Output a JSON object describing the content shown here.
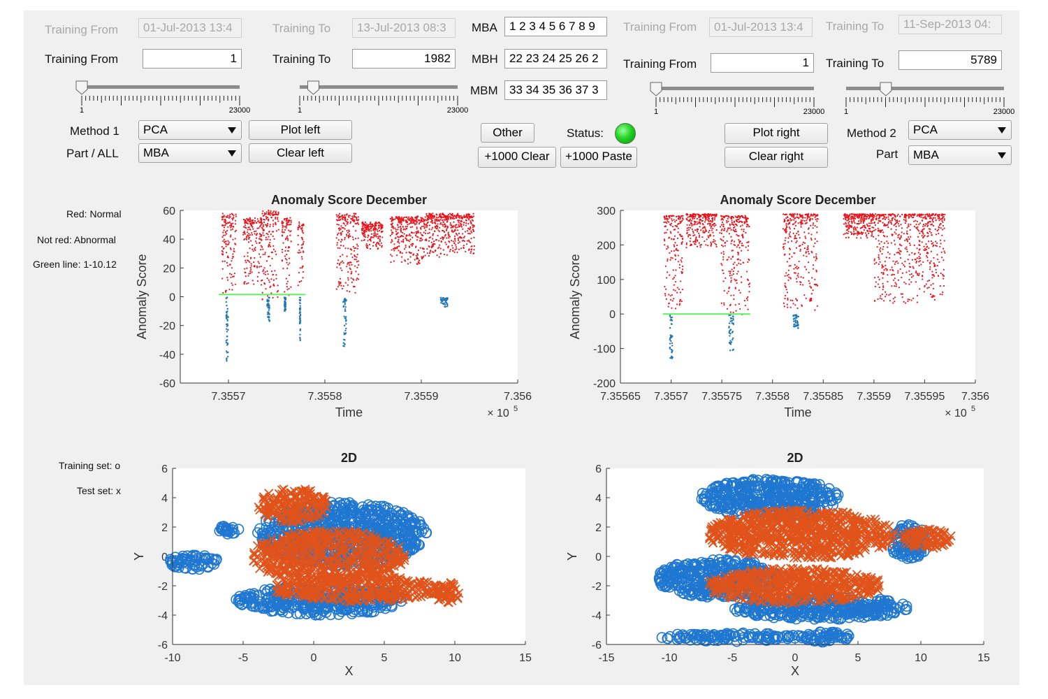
{
  "left_panel": {
    "training_from_date_label": "Training From",
    "training_from_date_value": "01-Jul-2013 13:4",
    "training_to_date_label": "Training To",
    "training_to_date_value": "13-Jul-2013 08:3",
    "training_from_label": "Training From",
    "training_from_value": "1",
    "training_to_label": "Training To",
    "training_to_value": "1982",
    "slider_from": {
      "min": "1",
      "max": "23000",
      "value": 1
    },
    "slider_to": {
      "min": "1",
      "max": "23000",
      "value": 1982
    },
    "method_label": "Method 1",
    "method_value": "PCA",
    "part_label": "Part / ALL",
    "part_value": "MBA",
    "plot_button": "Plot left",
    "clear_button": "Clear left"
  },
  "center_panel": {
    "mba_label": "MBA",
    "mba_value": "1 2 3 4 5 6 7 8 9",
    "mbh_label": "MBH",
    "mbh_value": "22 23 24 25 26 2",
    "mbm_label": "MBM",
    "mbm_value": "33 34 35 36 37 3",
    "other_button": "Other",
    "status_label": "Status:",
    "status_color": "#22d422",
    "clear_1000_button": "+1000 Clear",
    "paste_1000_button": "+1000 Paste"
  },
  "right_panel": {
    "training_from_date_label": "Training From",
    "training_from_date_value": "01-Jul-2013 13:4",
    "training_to_date_label": "Training To",
    "training_to_date_value": "11-Sep-2013 04:",
    "training_from_label": "Training From",
    "training_from_value": "1",
    "training_to_label": "Training To",
    "training_to_value": "5789",
    "slider_from": {
      "min": "1",
      "max": "23000",
      "value": 1
    },
    "slider_to": {
      "min": "1",
      "max": "23000",
      "value": 5789
    },
    "method_label": "Method 2",
    "method_value": "PCA",
    "part_label": "Part",
    "part_value": "MBA",
    "plot_button": "Plot right",
    "clear_button": "Clear right"
  },
  "legend_notes": {
    "red": "Red: Normal",
    "not_red": "Not red: Abnormal",
    "green": "Green line: 1-10.12",
    "training": "Training set: o",
    "test": "Test set: x"
  },
  "colors": {
    "normal": "#e8141c",
    "abnormal": "#1f77b4",
    "threshold": "#5cf05c",
    "train": "#1f77d0",
    "test": "#e0531a"
  },
  "chart_data": [
    {
      "type": "scatter",
      "title": "Anomaly Score December",
      "xlabel": "Time",
      "ylabel": "Anomaly Score",
      "x_exponent_label": "× 10",
      "x_exponent": "5",
      "xlim": [
        735565,
        735600
      ],
      "ylim": [
        -60,
        60
      ],
      "xticks": [
        735570,
        735580,
        735590,
        735600
      ],
      "xtick_labels": [
        "7.3557",
        "7.3558",
        "7.3559",
        "7.356"
      ],
      "yticks": [
        60,
        40,
        20,
        0,
        -20,
        -40,
        -60
      ],
      "threshold": {
        "y": 1.5,
        "x_range": [
          735569,
          735578
        ]
      },
      "clusters": [
        {
          "x": [
            735569.3,
            735570.8
          ],
          "y_top": 58,
          "y_bottom": 3,
          "abn_bottom": -44
        },
        {
          "x": [
            735571.5,
            735573.5
          ],
          "y_top": 55,
          "y_bottom": 10,
          "abn_bottom": null
        },
        {
          "x": [
            735573.5,
            735575.2
          ],
          "y_top": 60,
          "y_bottom": 0,
          "abn_bottom": -15
        },
        {
          "x": [
            735575.5,
            735576.5
          ],
          "y_top": 55,
          "y_bottom": 2,
          "abn_bottom": -8
        },
        {
          "x": [
            735577.2,
            735577.8
          ],
          "y_top": 52,
          "y_bottom": 5,
          "abn_bottom": -32
        },
        {
          "x": [
            735581.2,
            735583.5
          ],
          "y_top": 58,
          "y_bottom": 5,
          "abn_bottom": -33
        },
        {
          "x": [
            735583.8,
            735586.0
          ],
          "y_top": 52,
          "y_bottom": 35,
          "abn_bottom": null
        },
        {
          "x": [
            735586.8,
            735590.5
          ],
          "y_top": 56,
          "y_bottom": 25,
          "abn_bottom": null
        },
        {
          "x": [
            735590.5,
            735595.5
          ],
          "y_top": 58,
          "y_bottom": 30,
          "abn_bottom": -5
        }
      ]
    },
    {
      "type": "scatter",
      "title": "Anomaly Score December",
      "xlabel": "Time",
      "ylabel": "Anomaly Score",
      "x_exponent_label": "× 10",
      "x_exponent": "5",
      "xlim": [
        735565,
        735600
      ],
      "ylim": [
        -200,
        300
      ],
      "xticks": [
        735565,
        735570,
        735575,
        735580,
        735585,
        735590,
        735595,
        735600
      ],
      "xtick_labels": [
        "7.35565",
        "7.3557",
        "7.35575",
        "7.3558",
        "7.35585",
        "7.3559",
        "7.35595",
        "7.356"
      ],
      "yticks": [
        300,
        200,
        100,
        0,
        -100,
        -200
      ],
      "threshold": {
        "y": 0,
        "x_range": [
          735569.2,
          735577.8
        ]
      },
      "clusters": [
        {
          "x": [
            735569.3,
            735571.2
          ],
          "y_top": 285,
          "y_bottom": 5,
          "abn_bottom": -140
        },
        {
          "x": [
            735571.5,
            735574.5
          ],
          "y_top": 290,
          "y_bottom": 190,
          "abn_bottom": null
        },
        {
          "x": [
            735574.8,
            735577.8
          ],
          "y_top": 285,
          "y_bottom": 0,
          "abn_bottom": -110
        },
        {
          "x": [
            735581.0,
            735584.5
          ],
          "y_top": 290,
          "y_bottom": 10,
          "abn_bottom": -40
        },
        {
          "x": [
            735587.0,
            735590.0
          ],
          "y_top": 290,
          "y_bottom": 220,
          "abn_bottom": null
        },
        {
          "x": [
            735590.0,
            735597.0
          ],
          "y_top": 290,
          "y_bottom": 30,
          "abn_bottom": null
        }
      ]
    },
    {
      "type": "scatter",
      "title": "2D",
      "xlabel": "X",
      "ylabel": "Y",
      "xlim": [
        -10,
        15
      ],
      "ylim": [
        -6,
        6
      ],
      "xticks": [
        -10,
        -5,
        0,
        5,
        10,
        15
      ],
      "yticks": [
        6,
        4,
        2,
        0,
        -2,
        -4,
        -6
      ],
      "series": [
        {
          "name": "Training set",
          "marker": "o",
          "regions": [
            {
              "cx": -8.5,
              "cy": -0.4,
              "rx": 1.8,
              "ry": 0.5
            },
            {
              "cx": 2.0,
              "cy": 1.5,
              "rx": 6.0,
              "ry": 2.2
            },
            {
              "cx": 0.5,
              "cy": -3.0,
              "rx": 6.0,
              "ry": 1.0
            },
            {
              "cx": -6.0,
              "cy": 1.8,
              "rx": 0.8,
              "ry": 0.3
            }
          ]
        },
        {
          "name": "Test set",
          "marker": "x",
          "regions": [
            {
              "cx": -1.5,
              "cy": 3.5,
              "rx": 2.5,
              "ry": 1.2
            },
            {
              "cx": 1.0,
              "cy": 0.0,
              "rx": 5.5,
              "ry": 1.8
            },
            {
              "cx": 3.0,
              "cy": -2.2,
              "rx": 6.0,
              "ry": 0.9
            },
            {
              "cx": 9.5,
              "cy": -2.5,
              "rx": 0.8,
              "ry": 0.8
            }
          ]
        }
      ]
    },
    {
      "type": "scatter",
      "title": "2D",
      "xlabel": "X",
      "ylabel": "Y",
      "xlim": [
        -15,
        15
      ],
      "ylim": [
        -6,
        6
      ],
      "xticks": [
        -15,
        -10,
        -5,
        0,
        5,
        10,
        15
      ],
      "yticks": [
        6,
        4,
        2,
        0,
        -2,
        -4,
        -6
      ],
      "series": [
        {
          "name": "Training set",
          "marker": "o",
          "regions": [
            {
              "cx": -2.0,
              "cy": 4.0,
              "rx": 5.5,
              "ry": 1.3
            },
            {
              "cx": -6.0,
              "cy": -1.5,
              "rx": 5.0,
              "ry": 1.3
            },
            {
              "cx": 2.0,
              "cy": -3.5,
              "rx": 7.0,
              "ry": 0.8
            },
            {
              "cx": -5.0,
              "cy": -5.5,
              "rx": 6.0,
              "ry": 0.3
            },
            {
              "cx": 2.5,
              "cy": -5.5,
              "rx": 2.0,
              "ry": 0.4
            },
            {
              "cx": 9.0,
              "cy": 1.0,
              "rx": 1.5,
              "ry": 1.2
            }
          ]
        },
        {
          "name": "Test set",
          "marker": "x",
          "regions": [
            {
              "cx": 0.5,
              "cy": 1.5,
              "rx": 7.5,
              "ry": 1.7
            },
            {
              "cx": 0.0,
              "cy": -2.0,
              "rx": 7.0,
              "ry": 1.2
            },
            {
              "cx": 10.5,
              "cy": 1.2,
              "rx": 2.0,
              "ry": 0.7
            }
          ]
        }
      ]
    }
  ]
}
